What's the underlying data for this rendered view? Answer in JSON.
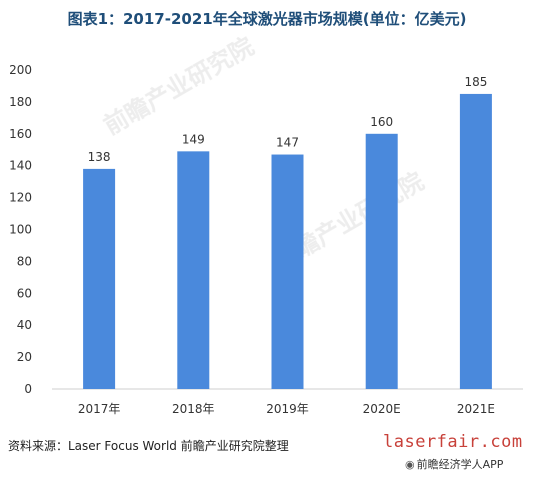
{
  "chart_data": {
    "type": "bar",
    "title": "图表1：2017-2021年全球激光器市场规模(单位：亿美元)",
    "categories": [
      "2017年",
      "2018年",
      "2019年",
      "2020E",
      "2021E"
    ],
    "values": [
      138,
      149,
      147,
      160,
      185
    ],
    "ylim": [
      0,
      200
    ],
    "yticks": [
      0,
      20,
      40,
      60,
      80,
      100,
      120,
      140,
      160,
      180,
      200
    ],
    "grid": false,
    "bar_color": "#4a89dc"
  },
  "source": "资料来源：Laser Focus World 前瞻产业研究院整理",
  "watermark": "前瞻产业研究院",
  "brand": "laserfair.com",
  "brand_sub": "前瞻经济学人APP"
}
